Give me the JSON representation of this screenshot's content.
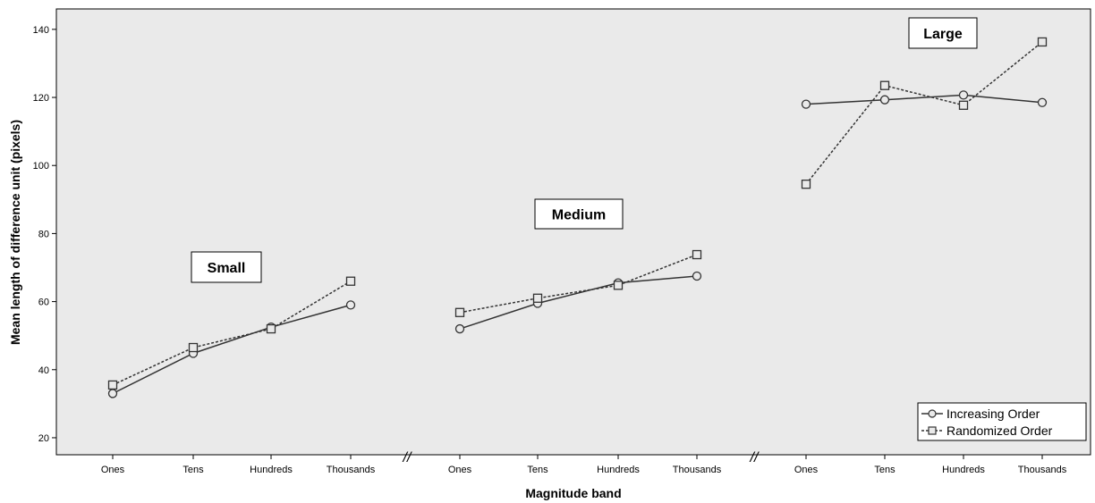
{
  "chart_data": {
    "type": "line",
    "title": "",
    "xlabel": "Magnitude band",
    "ylabel": "Mean length of difference unit (pixels)",
    "ylim": [
      15,
      146
    ],
    "yticks": [
      20,
      40,
      60,
      80,
      100,
      120,
      140
    ],
    "grid": false,
    "legend_position": "bottom-right",
    "axis_break_marker": "//",
    "groups": [
      {
        "label": "Small",
        "categories": [
          "Ones",
          "Tens",
          "Hundreds",
          "Thousands"
        ],
        "series": [
          {
            "name": "Increasing Order",
            "values": [
              33,
              44.8,
              52.5,
              59
            ]
          },
          {
            "name": "Randomized Order",
            "values": [
              35.5,
              46.5,
              52,
              66
            ]
          }
        ]
      },
      {
        "label": "Medium",
        "categories": [
          "Ones",
          "Tens",
          "Hundreds",
          "Thousands"
        ],
        "series": [
          {
            "name": "Increasing Order",
            "values": [
              52,
              59.5,
              65.5,
              67.5
            ]
          },
          {
            "name": "Randomized Order",
            "values": [
              56.8,
              61,
              64.8,
              73.8
            ]
          }
        ]
      },
      {
        "label": "Large",
        "categories": [
          "Ones",
          "Tens",
          "Hundreds",
          "Thousands"
        ],
        "series": [
          {
            "name": "Increasing Order",
            "values": [
              118,
              119.3,
              120.7,
              118.5
            ]
          },
          {
            "name": "Randomized Order",
            "values": [
              94.5,
              123.5,
              117.7,
              136.3
            ]
          }
        ]
      }
    ],
    "series_styles": [
      {
        "name": "Increasing Order",
        "line": "solid",
        "marker": "circle",
        "color": "#333333"
      },
      {
        "name": "Randomized Order",
        "line": "dashed",
        "marker": "square",
        "color": "#333333"
      }
    ],
    "legend": [
      "Increasing Order",
      "Randomized Order"
    ],
    "colors": {
      "plot_background": "#eaeaea",
      "line": "#333333"
    }
  }
}
